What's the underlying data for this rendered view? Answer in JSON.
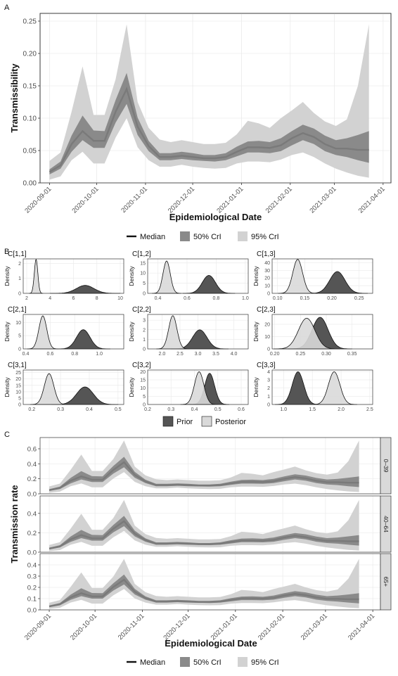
{
  "colors": {
    "median": "#7a7a7a",
    "ci50": "#8a8a8a",
    "ci95": "#d2d2d2",
    "prior": "#555555",
    "posterior": "#d9d9d9",
    "panel_bg": "#ffffff",
    "grid": "#ebebeb",
    "strip": "#d9d9d9"
  },
  "date_ticks": [
    "2020-09-01",
    "2020-10-01",
    "2020-11-01",
    "2020-12-01",
    "2021-01-01",
    "2021-02-01",
    "2021-03-01",
    "2021-04-01"
  ],
  "xlabel": "Epidemiological Date",
  "panel_A": {
    "label": "A",
    "ylabel": "Transmissibility",
    "ylim": [
      0,
      0.25
    ],
    "yticks": [
      "0.00",
      "0.05",
      "0.10",
      "0.15",
      "0.20",
      "0.25"
    ],
    "legend": {
      "median": "Median",
      "ci50": "50% CrI",
      "ci95": "95% CrI"
    }
  },
  "panel_B": {
    "label": "B",
    "ylabel": "Density",
    "legend": {
      "prior": "Prior",
      "posterior": "Posterior"
    },
    "facets": [
      {
        "title": "C[1,1]",
        "xlim": [
          1.7,
          10.3
        ],
        "xticks": [
          2,
          4,
          6,
          8,
          10
        ],
        "xtick_labels": [
          "2",
          "4",
          "6",
          "8",
          "10"
        ],
        "yticks": [
          0,
          1,
          2
        ],
        "ytick_labels": [
          "0",
          "1",
          "2"
        ],
        "ymax": 2.3,
        "posterior": {
          "mean": 2.8,
          "sd": 0.15
        },
        "prior": {
          "mean": 7.0,
          "sd": 0.75
        }
      },
      {
        "title": "C[1,2]",
        "xlim": [
          0.33,
          1.02
        ],
        "xticks": [
          0.4,
          0.6,
          0.8,
          1.0
        ],
        "xtick_labels": [
          "0.4",
          "0.6",
          "0.8",
          "1.0"
        ],
        "yticks": [
          0,
          5,
          10,
          15
        ],
        "ytick_labels": [
          "0",
          "5",
          "10",
          "15"
        ],
        "ymax": 17,
        "posterior": {
          "mean": 0.46,
          "sd": 0.025
        },
        "prior": {
          "mean": 0.75,
          "sd": 0.045
        }
      },
      {
        "title": "C[1,3]",
        "xlim": [
          0.09,
          0.275
        ],
        "xticks": [
          0.1,
          0.15,
          0.2,
          0.25
        ],
        "xtick_labels": [
          "0.10",
          "0.15",
          "0.20",
          "0.25"
        ],
        "yticks": [
          0,
          10,
          20,
          30,
          40
        ],
        "ytick_labels": [
          "0",
          "10",
          "20",
          "30",
          "40"
        ],
        "ymax": 45,
        "posterior": {
          "mean": 0.137,
          "sd": 0.009
        },
        "prior": {
          "mean": 0.21,
          "sd": 0.014
        }
      },
      {
        "title": "C[2,1]",
        "xlim": [
          0.38,
          1.2
        ],
        "xticks": [
          0.4,
          0.6,
          0.8,
          1.0
        ],
        "xtick_labels": [
          "0.4",
          "0.6",
          "0.8",
          "1.0"
        ],
        "yticks": [
          0,
          5,
          10
        ],
        "ytick_labels": [
          "0",
          "5",
          "10"
        ],
        "ymax": 13,
        "posterior": {
          "mean": 0.54,
          "sd": 0.032
        },
        "prior": {
          "mean": 0.87,
          "sd": 0.055
        }
      },
      {
        "title": "C[2,2]",
        "xlim": [
          1.6,
          4.4
        ],
        "xticks": [
          2.0,
          2.5,
          3.0,
          3.5,
          4.0
        ],
        "xtick_labels": [
          "2.0",
          "2.5",
          "3.0",
          "3.5",
          "4.0"
        ],
        "yticks": [
          0,
          1,
          2,
          3
        ],
        "ytick_labels": [
          "0",
          "1",
          "2",
          "3"
        ],
        "ymax": 3.6,
        "posterior": {
          "mean": 2.3,
          "sd": 0.115
        },
        "prior": {
          "mean": 3.05,
          "sd": 0.2
        }
      },
      {
        "title": "C[2,3]",
        "xlim": [
          0.195,
          0.39
        ],
        "xticks": [
          0.2,
          0.25,
          0.3,
          0.35
        ],
        "xtick_labels": [
          "0.20",
          "0.25",
          "0.30",
          "0.35"
        ],
        "yticks": [
          0,
          10,
          20
        ],
        "ytick_labels": [
          "0",
          "10",
          "20"
        ],
        "ymax": 28,
        "posterior": {
          "mean": 0.262,
          "sd": 0.016
        },
        "prior": {
          "mean": 0.288,
          "sd": 0.0155
        }
      },
      {
        "title": "C[3,1]",
        "xlim": [
          0.17,
          0.52
        ],
        "xticks": [
          0.2,
          0.3,
          0.4,
          0.5
        ],
        "xtick_labels": [
          "0.2",
          "0.3",
          "0.4",
          "0.5"
        ],
        "yticks": [
          0,
          5,
          10,
          15,
          20,
          25
        ],
        "ytick_labels": [
          "0",
          "5",
          "10",
          "15",
          "20",
          "25"
        ],
        "ymax": 27,
        "posterior": {
          "mean": 0.26,
          "sd": 0.0165
        },
        "prior": {
          "mean": 0.385,
          "sd": 0.029
        }
      },
      {
        "title": "C[3,2]",
        "xlim": [
          0.2,
          0.63
        ],
        "xticks": [
          0.2,
          0.3,
          0.4,
          0.5,
          0.6
        ],
        "xtick_labels": [
          "0.2",
          "0.3",
          "0.4",
          "0.5",
          "0.6"
        ],
        "yticks": [
          0,
          5,
          10,
          15,
          20
        ],
        "ytick_labels": [
          "0",
          "5",
          "10",
          "15",
          "20"
        ],
        "ymax": 21,
        "posterior": {
          "mean": 0.42,
          "sd": 0.02
        },
        "prior": {
          "mean": 0.465,
          "sd": 0.021
        }
      },
      {
        "title": "C[3,3]",
        "xlim": [
          0.8,
          2.55
        ],
        "xticks": [
          1.0,
          1.5,
          2.0,
          2.5
        ],
        "xtick_labels": [
          "1.0",
          "1.5",
          "2.0",
          "2.5"
        ],
        "yticks": [
          0,
          1,
          2,
          3,
          4
        ],
        "ytick_labels": [
          "0",
          "1",
          "2",
          "3",
          "4"
        ],
        "ymax": 4.2,
        "posterior": {
          "mean": 1.88,
          "sd": 0.1
        },
        "prior": {
          "mean": 1.25,
          "sd": 0.1
        }
      }
    ]
  },
  "panel_C": {
    "label": "C",
    "ylabel": "Transmission rate",
    "legend": {
      "median": "Median",
      "ci50": "50% CrI",
      "ci95": "95% CrI"
    },
    "facets": [
      {
        "strip": "0–39",
        "ylim": [
          0,
          0.75
        ],
        "yticks": [
          0,
          0.2,
          0.4,
          0.6
        ],
        "ytick_labels": [
          "0.0",
          "0.2",
          "0.4",
          "0.6"
        ],
        "scale": 2.9
      },
      {
        "strip": "40–64",
        "ylim": [
          0,
          0.58
        ],
        "yticks": [
          0,
          0.2,
          0.4
        ],
        "ytick_labels": [
          "0.0",
          "0.2",
          "0.4"
        ],
        "scale": 2.2
      },
      {
        "strip": "65+",
        "ylim": [
          0,
          0.5
        ],
        "yticks": [
          0,
          0.1,
          0.2,
          0.3,
          0.4
        ],
        "ytick_labels": [
          "0.0",
          "0.1",
          "0.2",
          "0.3",
          "0.4"
        ],
        "scale": 1.85
      }
    ]
  },
  "chart_data": {
    "type": "line",
    "title": "",
    "xlabel": "Epidemiological Date",
    "ylabel": "Transmissibility",
    "ylim": [
      0,
      0.25
    ],
    "x": [
      "2020-09-01",
      "2020-09-08",
      "2020-09-15",
      "2020-09-22",
      "2020-09-29",
      "2020-10-06",
      "2020-10-13",
      "2020-10-20",
      "2020-10-27",
      "2020-11-03",
      "2020-11-10",
      "2020-11-17",
      "2020-11-24",
      "2020-12-01",
      "2020-12-08",
      "2020-12-15",
      "2020-12-22",
      "2020-12-29",
      "2021-01-05",
      "2021-01-12",
      "2021-01-19",
      "2021-01-26",
      "2021-02-02",
      "2021-02-09",
      "2021-02-16",
      "2021-02-23",
      "2021-03-02",
      "2021-03-09",
      "2021-03-16",
      "2021-03-23"
    ],
    "series": [
      {
        "name": "Median",
        "values": [
          0.017,
          0.027,
          0.06,
          0.08,
          0.065,
          0.065,
          0.11,
          0.145,
          0.087,
          0.057,
          0.04,
          0.04,
          0.042,
          0.04,
          0.038,
          0.038,
          0.04,
          0.048,
          0.055,
          0.055,
          0.054,
          0.058,
          0.069,
          0.077,
          0.071,
          0.06,
          0.053,
          0.053,
          0.051,
          0.051
        ]
      },
      {
        "name": "50% CrI",
        "lower": [
          0.013,
          0.022,
          0.048,
          0.066,
          0.054,
          0.054,
          0.093,
          0.122,
          0.074,
          0.049,
          0.035,
          0.035,
          0.037,
          0.035,
          0.034,
          0.033,
          0.035,
          0.041,
          0.047,
          0.047,
          0.046,
          0.049,
          0.058,
          0.066,
          0.06,
          0.049,
          0.043,
          0.04,
          0.035,
          0.031
        ],
        "upper": [
          0.021,
          0.033,
          0.073,
          0.104,
          0.081,
          0.08,
          0.128,
          0.17,
          0.101,
          0.065,
          0.046,
          0.046,
          0.048,
          0.046,
          0.043,
          0.043,
          0.046,
          0.056,
          0.064,
          0.065,
          0.063,
          0.069,
          0.08,
          0.09,
          0.084,
          0.073,
          0.066,
          0.069,
          0.074,
          0.08
        ]
      },
      {
        "name": "95% CrI",
        "lower": [
          0.005,
          0.01,
          0.035,
          0.048,
          0.03,
          0.03,
          0.07,
          0.1,
          0.055,
          0.035,
          0.025,
          0.025,
          0.028,
          0.025,
          0.023,
          0.022,
          0.023,
          0.03,
          0.033,
          0.033,
          0.032,
          0.036,
          0.043,
          0.047,
          0.04,
          0.03,
          0.022,
          0.016,
          0.011,
          0.008
        ],
        "upper": [
          0.034,
          0.047,
          0.11,
          0.18,
          0.105,
          0.105,
          0.16,
          0.245,
          0.125,
          0.085,
          0.067,
          0.063,
          0.066,
          0.063,
          0.06,
          0.06,
          0.062,
          0.075,
          0.096,
          0.092,
          0.085,
          0.1,
          0.112,
          0.125,
          0.108,
          0.095,
          0.088,
          0.098,
          0.15,
          0.245
        ]
      }
    ]
  }
}
